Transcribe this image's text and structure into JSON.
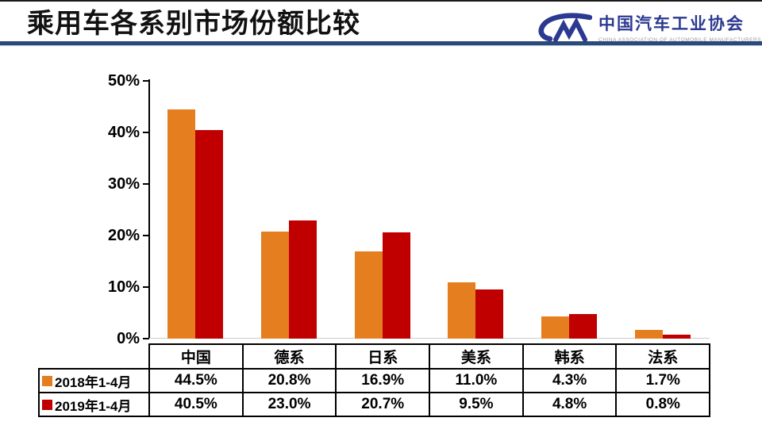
{
  "header": {
    "title": "乘用车各系别市场份额比较",
    "logo": {
      "mark": "cam-logo",
      "org_cn": "中国汽车工业协会",
      "org_en": "CHINA  ASSOCIATION  OF  AUTOMOBILE  MANUFACTURERS"
    }
  },
  "chart_data": {
    "type": "bar",
    "title": "乘用车各系别市场份额比较",
    "categories": [
      "中国",
      "德系",
      "日系",
      "美系",
      "韩系",
      "法系"
    ],
    "series": [
      {
        "name": "2018年1-4月",
        "color": "#E57E1E",
        "values": [
          44.5,
          20.8,
          16.9,
          11.0,
          4.3,
          1.7
        ]
      },
      {
        "name": "2019年1-4月",
        "color": "#C00000",
        "values": [
          40.5,
          23.0,
          20.7,
          9.5,
          4.8,
          0.8
        ]
      }
    ],
    "xlabel": "",
    "ylabel": "",
    "ylim": [
      0,
      50
    ],
    "yticks": [
      0,
      10,
      20,
      30,
      40,
      50
    ],
    "ytick_labels": [
      "0%",
      "10%",
      "20%",
      "30%",
      "40%",
      "50%"
    ],
    "grid": false,
    "legend_position": "table-left-column",
    "value_format": "0.0%"
  },
  "table": {
    "col_headers": [
      "中国",
      "德系",
      "日系",
      "美系",
      "韩系",
      "法系"
    ],
    "rows": [
      {
        "label": "2018年1-4月",
        "marker_color": "#E57E1E",
        "values": [
          "44.5%",
          "20.8%",
          "16.9%",
          "11.0%",
          "4.3%",
          "1.7%"
        ]
      },
      {
        "label": "2019年1-4月",
        "marker_color": "#C00000",
        "values": [
          "40.5%",
          "23.0%",
          "20.7%",
          "9.5%",
          "4.8%",
          "0.8%"
        ]
      }
    ]
  },
  "colors": {
    "series_2018": "#E57E1E",
    "series_2019": "#C00000",
    "divider_navy": "#2C4977",
    "divider_light": "#A8C6E6",
    "logo_blue": "#2B3990",
    "axis": "#000000",
    "baseline_gray": "#CCCCCC",
    "background": "#FFFFFF"
  }
}
